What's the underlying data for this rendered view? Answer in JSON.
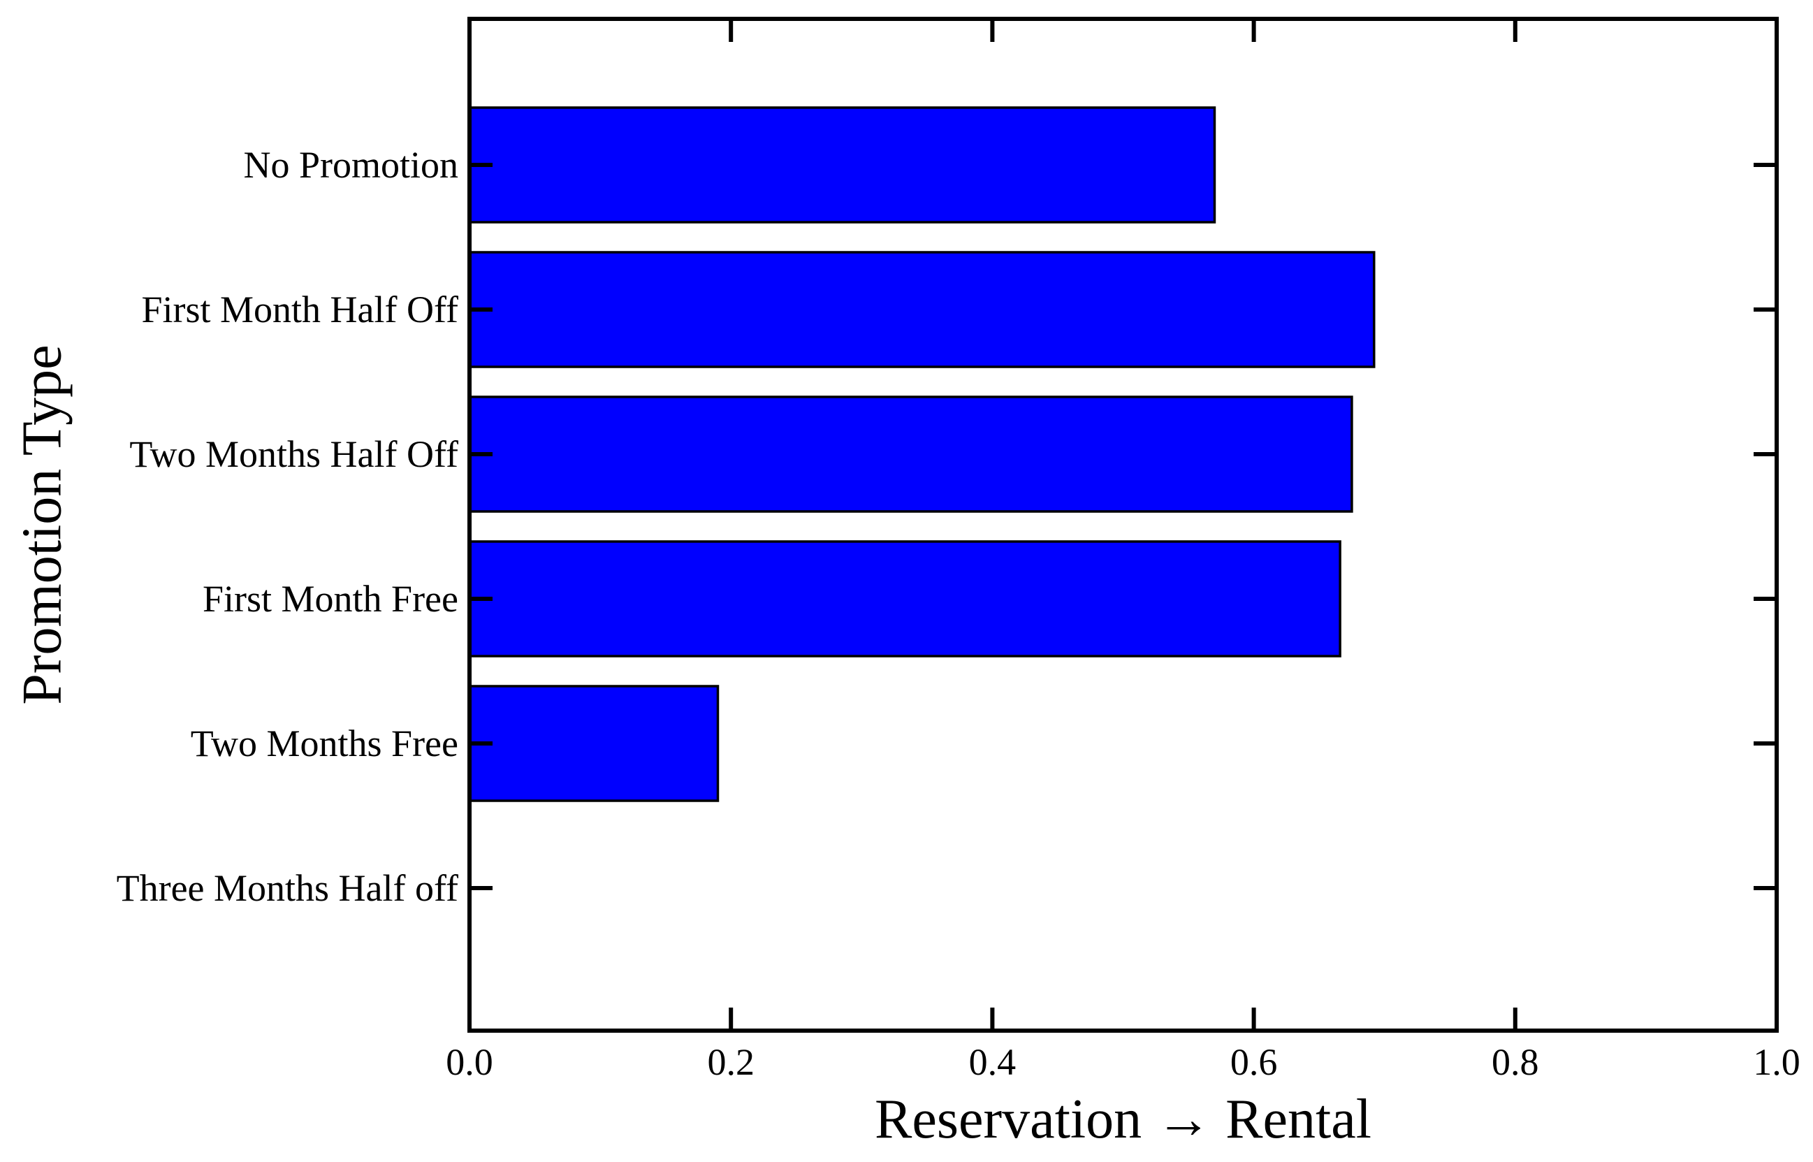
{
  "chart_data": {
    "type": "bar",
    "orientation": "horizontal",
    "categories": [
      "No Promotion",
      "First Month Half Off",
      "Two Months Half Off",
      "First Month Free",
      "Two Months Free",
      "Three Months Half off"
    ],
    "values": [
      0.57,
      0.692,
      0.675,
      0.666,
      0.19,
      0.0
    ],
    "xlabel": "Reservation → Rental",
    "ylabel": "Promotion Type",
    "xlim": [
      0.0,
      1.0
    ],
    "xticks": [
      "0.0",
      "0.2",
      "0.4",
      "0.6",
      "0.8",
      "1.0"
    ],
    "grid": false,
    "bar_color": "#0000ff",
    "edge_color": "#000000"
  }
}
